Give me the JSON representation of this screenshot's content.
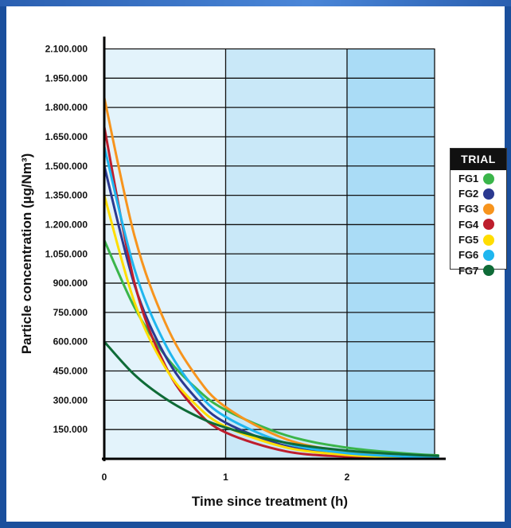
{
  "chart_data": {
    "type": "line",
    "xlabel": "Time since treatment (h)",
    "ylabel": "Particle concentration (µg/Nm³)",
    "xlim": [
      0,
      2.75
    ],
    "ylim": [
      0,
      2200000
    ],
    "x_ticks": [
      {
        "value": 0,
        "label": "0"
      },
      {
        "value": 1,
        "label": "1"
      },
      {
        "value": 2,
        "label": "2"
      }
    ],
    "y_ticks": [
      {
        "value": 150000,
        "label": "150.000"
      },
      {
        "value": 300000,
        "label": "300.000"
      },
      {
        "value": 450000,
        "label": "450.000"
      },
      {
        "value": 600000,
        "label": "600.000"
      },
      {
        "value": 750000,
        "label": "750.000"
      },
      {
        "value": 900000,
        "label": "900.000"
      },
      {
        "value": 1050000,
        "label": "1.050.000"
      },
      {
        "value": 1200000,
        "label": "1.200.000"
      },
      {
        "value": 1350000,
        "label": "1.350.000"
      },
      {
        "value": 1500000,
        "label": "1.500.000"
      },
      {
        "value": 1650000,
        "label": "1.650.000"
      },
      {
        "value": 1800000,
        "label": "1.800.000"
      },
      {
        "value": 1950000,
        "label": "1.950.000"
      },
      {
        "value": 2100000,
        "label": "2.100.000"
      }
    ],
    "grid": true,
    "background_bands": [
      "#e3f3fb",
      "#c9e8f8",
      "#aadcf6"
    ],
    "legend_title": "TRIAL",
    "legend_position": "right",
    "series": [
      {
        "name": "FG1",
        "color": "#3ab54a",
        "x": [
          0,
          0.25,
          0.5,
          0.75,
          1,
          1.5,
          2,
          2.5,
          2.75
        ],
        "y": [
          1120000,
          775000,
          530000,
          365000,
          250000,
          120000,
          57000,
          27000,
          18000
        ]
      },
      {
        "name": "FG2",
        "color": "#2b3990",
        "x": [
          0,
          0.25,
          0.5,
          0.75,
          1,
          1.5,
          2,
          2.5,
          2.75
        ],
        "y": [
          1500000,
          890000,
          530000,
          315000,
          185000,
          65000,
          22000,
          8000,
          4000
        ]
      },
      {
        "name": "FG3",
        "color": "#f7941d",
        "x": [
          0,
          0.25,
          0.5,
          0.75,
          1,
          1.5,
          2,
          2.5,
          2.75
        ],
        "y": [
          1850000,
          1140000,
          700000,
          430000,
          265000,
          100000,
          38000,
          14000,
          9000
        ]
      },
      {
        "name": "FG4",
        "color": "#be1e2d",
        "x": [
          0,
          0.25,
          0.5,
          0.75,
          1,
          1.5,
          2,
          2.5,
          2.75
        ],
        "y": [
          1700000,
          900000,
          480000,
          255000,
          135000,
          38000,
          11000,
          3000,
          1500
        ]
      },
      {
        "name": "FG5",
        "color": "#ffdd00",
        "x": [
          0,
          0.25,
          0.5,
          0.75,
          1,
          1.5,
          2,
          2.5,
          2.75
        ],
        "y": [
          1350000,
          800000,
          470000,
          280000,
          165000,
          58000,
          20000,
          7000,
          4000
        ]
      },
      {
        "name": "FG6",
        "color": "#1fb6ef",
        "x": [
          0,
          0.25,
          0.5,
          0.75,
          1,
          1.5,
          2,
          2.5,
          2.75
        ],
        "y": [
          1600000,
          970000,
          590000,
          355000,
          215000,
          80000,
          29000,
          11000,
          6500
        ]
      },
      {
        "name": "FG7",
        "color": "#0f6b37",
        "x": [
          0,
          0.25,
          0.5,
          0.75,
          1,
          1.5,
          2,
          2.5,
          2.75
        ],
        "y": [
          600000,
          430000,
          310000,
          222000,
          160000,
          82000,
          42000,
          22000,
          15000
        ]
      }
    ]
  }
}
